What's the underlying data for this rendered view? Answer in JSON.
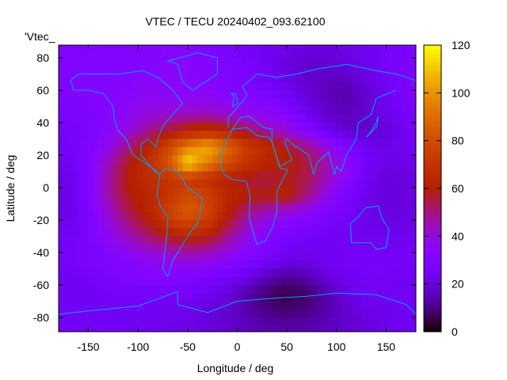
{
  "chart_data": {
    "type": "heatmap",
    "title": "VTEC / TECU 20240402_093.62100",
    "xlabel": "Longitude / deg",
    "ylabel": "Latitude / deg",
    "key_label": "'Vtec_",
    "xlim": [
      -180,
      180
    ],
    "ylim": [
      -88.8,
      87.8
    ],
    "xticks": [
      -150,
      -100,
      -50,
      0,
      50,
      100,
      150
    ],
    "yticks": [
      -80,
      -60,
      -40,
      -20,
      0,
      20,
      40,
      60,
      80
    ],
    "colorbar": {
      "range": [
        0,
        120
      ],
      "ticks": [
        0,
        20,
        40,
        60,
        80,
        100,
        120
      ],
      "palette": "black-blue-purple-red-orange-yellow"
    },
    "coastline_color": "#00a0ff",
    "grid_lon": [
      -170,
      -150,
      -130,
      -110,
      -90,
      -70,
      -50,
      -30,
      -10,
      10,
      30,
      50,
      70,
      90,
      110,
      130,
      150,
      170
    ],
    "grid_lat": [
      85,
      75,
      65,
      55,
      45,
      35,
      25,
      15,
      5,
      -5,
      -15,
      -25,
      -35,
      -45,
      -55,
      -65,
      -75,
      -85
    ],
    "values": [
      [
        30,
        30,
        30,
        30,
        32,
        32,
        32,
        30,
        28,
        26,
        24,
        22,
        20,
        20,
        22,
        24,
        26,
        28
      ],
      [
        30,
        30,
        30,
        32,
        32,
        34,
        34,
        32,
        30,
        28,
        24,
        20,
        18,
        18,
        20,
        22,
        26,
        28
      ],
      [
        30,
        30,
        32,
        32,
        34,
        34,
        34,
        32,
        30,
        28,
        26,
        22,
        18,
        16,
        16,
        20,
        24,
        28
      ],
      [
        30,
        30,
        32,
        34,
        36,
        36,
        36,
        36,
        34,
        32,
        30,
        26,
        20,
        16,
        14,
        18,
        24,
        28
      ],
      [
        28,
        30,
        32,
        36,
        40,
        42,
        44,
        44,
        42,
        38,
        36,
        32,
        24,
        18,
        16,
        18,
        22,
        26
      ],
      [
        26,
        28,
        34,
        40,
        48,
        56,
        62,
        66,
        62,
        54,
        46,
        40,
        32,
        24,
        18,
        18,
        20,
        24
      ],
      [
        26,
        30,
        38,
        50,
        62,
        78,
        96,
        106,
        90,
        74,
        66,
        58,
        50,
        40,
        30,
        24,
        22,
        24
      ],
      [
        24,
        30,
        44,
        58,
        68,
        82,
        115,
        96,
        80,
        70,
        62,
        60,
        56,
        46,
        36,
        26,
        22,
        22
      ],
      [
        22,
        30,
        46,
        60,
        66,
        70,
        72,
        68,
        60,
        56,
        54,
        58,
        54,
        44,
        34,
        24,
        20,
        20
      ],
      [
        22,
        30,
        46,
        58,
        64,
        70,
        80,
        76,
        64,
        60,
        60,
        62,
        50,
        38,
        28,
        22,
        20,
        20
      ],
      [
        22,
        28,
        42,
        54,
        62,
        76,
        86,
        78,
        62,
        50,
        44,
        40,
        36,
        30,
        26,
        22,
        20,
        20
      ],
      [
        24,
        28,
        38,
        48,
        56,
        66,
        72,
        68,
        54,
        42,
        34,
        30,
        28,
        26,
        24,
        22,
        22,
        22
      ],
      [
        26,
        28,
        34,
        40,
        46,
        50,
        54,
        52,
        44,
        36,
        30,
        26,
        24,
        24,
        24,
        24,
        24,
        24
      ],
      [
        26,
        28,
        30,
        32,
        36,
        38,
        40,
        38,
        34,
        30,
        26,
        22,
        22,
        24,
        26,
        26,
        26,
        26
      ],
      [
        24,
        26,
        28,
        30,
        32,
        32,
        30,
        28,
        26,
        22,
        16,
        12,
        14,
        20,
        24,
        26,
        26,
        24
      ],
      [
        24,
        24,
        26,
        26,
        26,
        26,
        26,
        24,
        20,
        14,
        8,
        5,
        8,
        14,
        20,
        24,
        24,
        24
      ],
      [
        24,
        24,
        24,
        24,
        24,
        24,
        22,
        20,
        18,
        14,
        10,
        8,
        10,
        14,
        18,
        22,
        22,
        24
      ],
      [
        24,
        24,
        24,
        24,
        24,
        22,
        22,
        20,
        18,
        16,
        14,
        14,
        14,
        16,
        18,
        20,
        22,
        24
      ]
    ]
  }
}
